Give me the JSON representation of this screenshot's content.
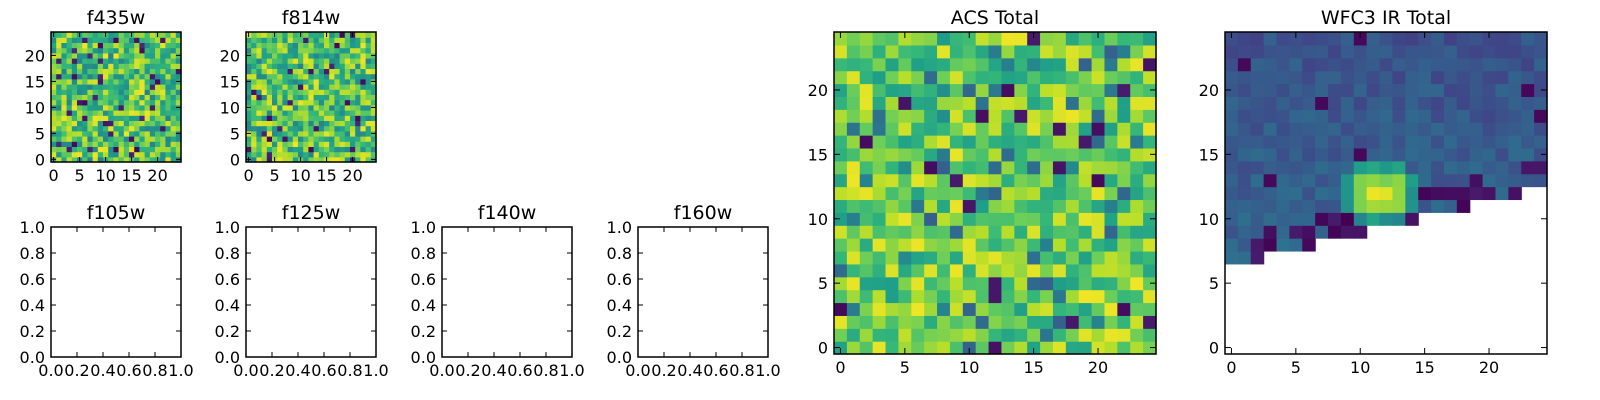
{
  "chart_data": [
    {
      "type": "heatmap",
      "title": "f435w",
      "colormap": "viridis",
      "size": [
        25,
        25
      ],
      "xlim": [
        -0.5,
        24.5
      ],
      "ylim": [
        -0.5,
        24.5
      ],
      "xticks": [
        "0",
        "5",
        "10",
        "15",
        "20"
      ],
      "yticks": [
        "0",
        "5",
        "10",
        "15",
        "20"
      ],
      "grid": false
    },
    {
      "type": "heatmap",
      "title": "f814w",
      "colormap": "viridis",
      "size": [
        25,
        25
      ],
      "xlim": [
        -0.5,
        24.5
      ],
      "ylim": [
        -0.5,
        24.5
      ],
      "xticks": [
        "0",
        "5",
        "10",
        "15",
        "20"
      ],
      "yticks": [
        "0",
        "5",
        "10",
        "15",
        "20"
      ],
      "grid": false
    },
    {
      "type": "empty",
      "title": "f105w",
      "xlim": [
        0,
        1
      ],
      "ylim": [
        0,
        1
      ],
      "xticks": [
        "0.0",
        "0.2",
        "0.4",
        "0.6",
        "0.8",
        "1.0"
      ],
      "yticks": [
        "0.0",
        "0.2",
        "0.4",
        "0.6",
        "0.8",
        "1.0"
      ]
    },
    {
      "type": "empty",
      "title": "f125w",
      "xlim": [
        0,
        1
      ],
      "ylim": [
        0,
        1
      ],
      "xticks": [
        "0.0",
        "0.2",
        "0.4",
        "0.6",
        "0.8",
        "1.0"
      ],
      "yticks": [
        "0.0",
        "0.2",
        "0.4",
        "0.6",
        "0.8",
        "1.0"
      ]
    },
    {
      "type": "empty",
      "title": "f140w",
      "xlim": [
        0,
        1
      ],
      "ylim": [
        0,
        1
      ],
      "xticks": [
        "0.0",
        "0.2",
        "0.4",
        "0.6",
        "0.8",
        "1.0"
      ],
      "yticks": [
        "0.0",
        "0.2",
        "0.4",
        "0.6",
        "0.8",
        "1.0"
      ]
    },
    {
      "type": "empty",
      "title": "f160w",
      "xlim": [
        0,
        1
      ],
      "ylim": [
        0,
        1
      ],
      "xticks": [
        "0.0",
        "0.2",
        "0.4",
        "0.6",
        "0.8",
        "1.0"
      ],
      "yticks": [
        "0.0",
        "0.2",
        "0.4",
        "0.6",
        "0.8",
        "1.0"
      ]
    },
    {
      "type": "heatmap",
      "title": "ACS Total",
      "colormap": "viridis",
      "size": [
        25,
        25
      ],
      "xlim": [
        -0.5,
        24.5
      ],
      "ylim": [
        -0.5,
        24.5
      ],
      "xticks": [
        "0",
        "5",
        "10",
        "15",
        "20"
      ],
      "yticks": [
        "0",
        "5",
        "10",
        "15",
        "20"
      ],
      "grid": false
    },
    {
      "type": "heatmap",
      "title": "WFC3 IR Total",
      "colormap": "viridis",
      "size": [
        25,
        25
      ],
      "xlim": [
        -0.5,
        24.5
      ],
      "ylim": [
        -0.5,
        24.5
      ],
      "xticks": [
        "0",
        "5",
        "10",
        "15",
        "20"
      ],
      "yticks": [
        "0",
        "5",
        "10",
        "15",
        "20"
      ],
      "grid": false,
      "masked_region": "lower-right (no data)"
    }
  ]
}
